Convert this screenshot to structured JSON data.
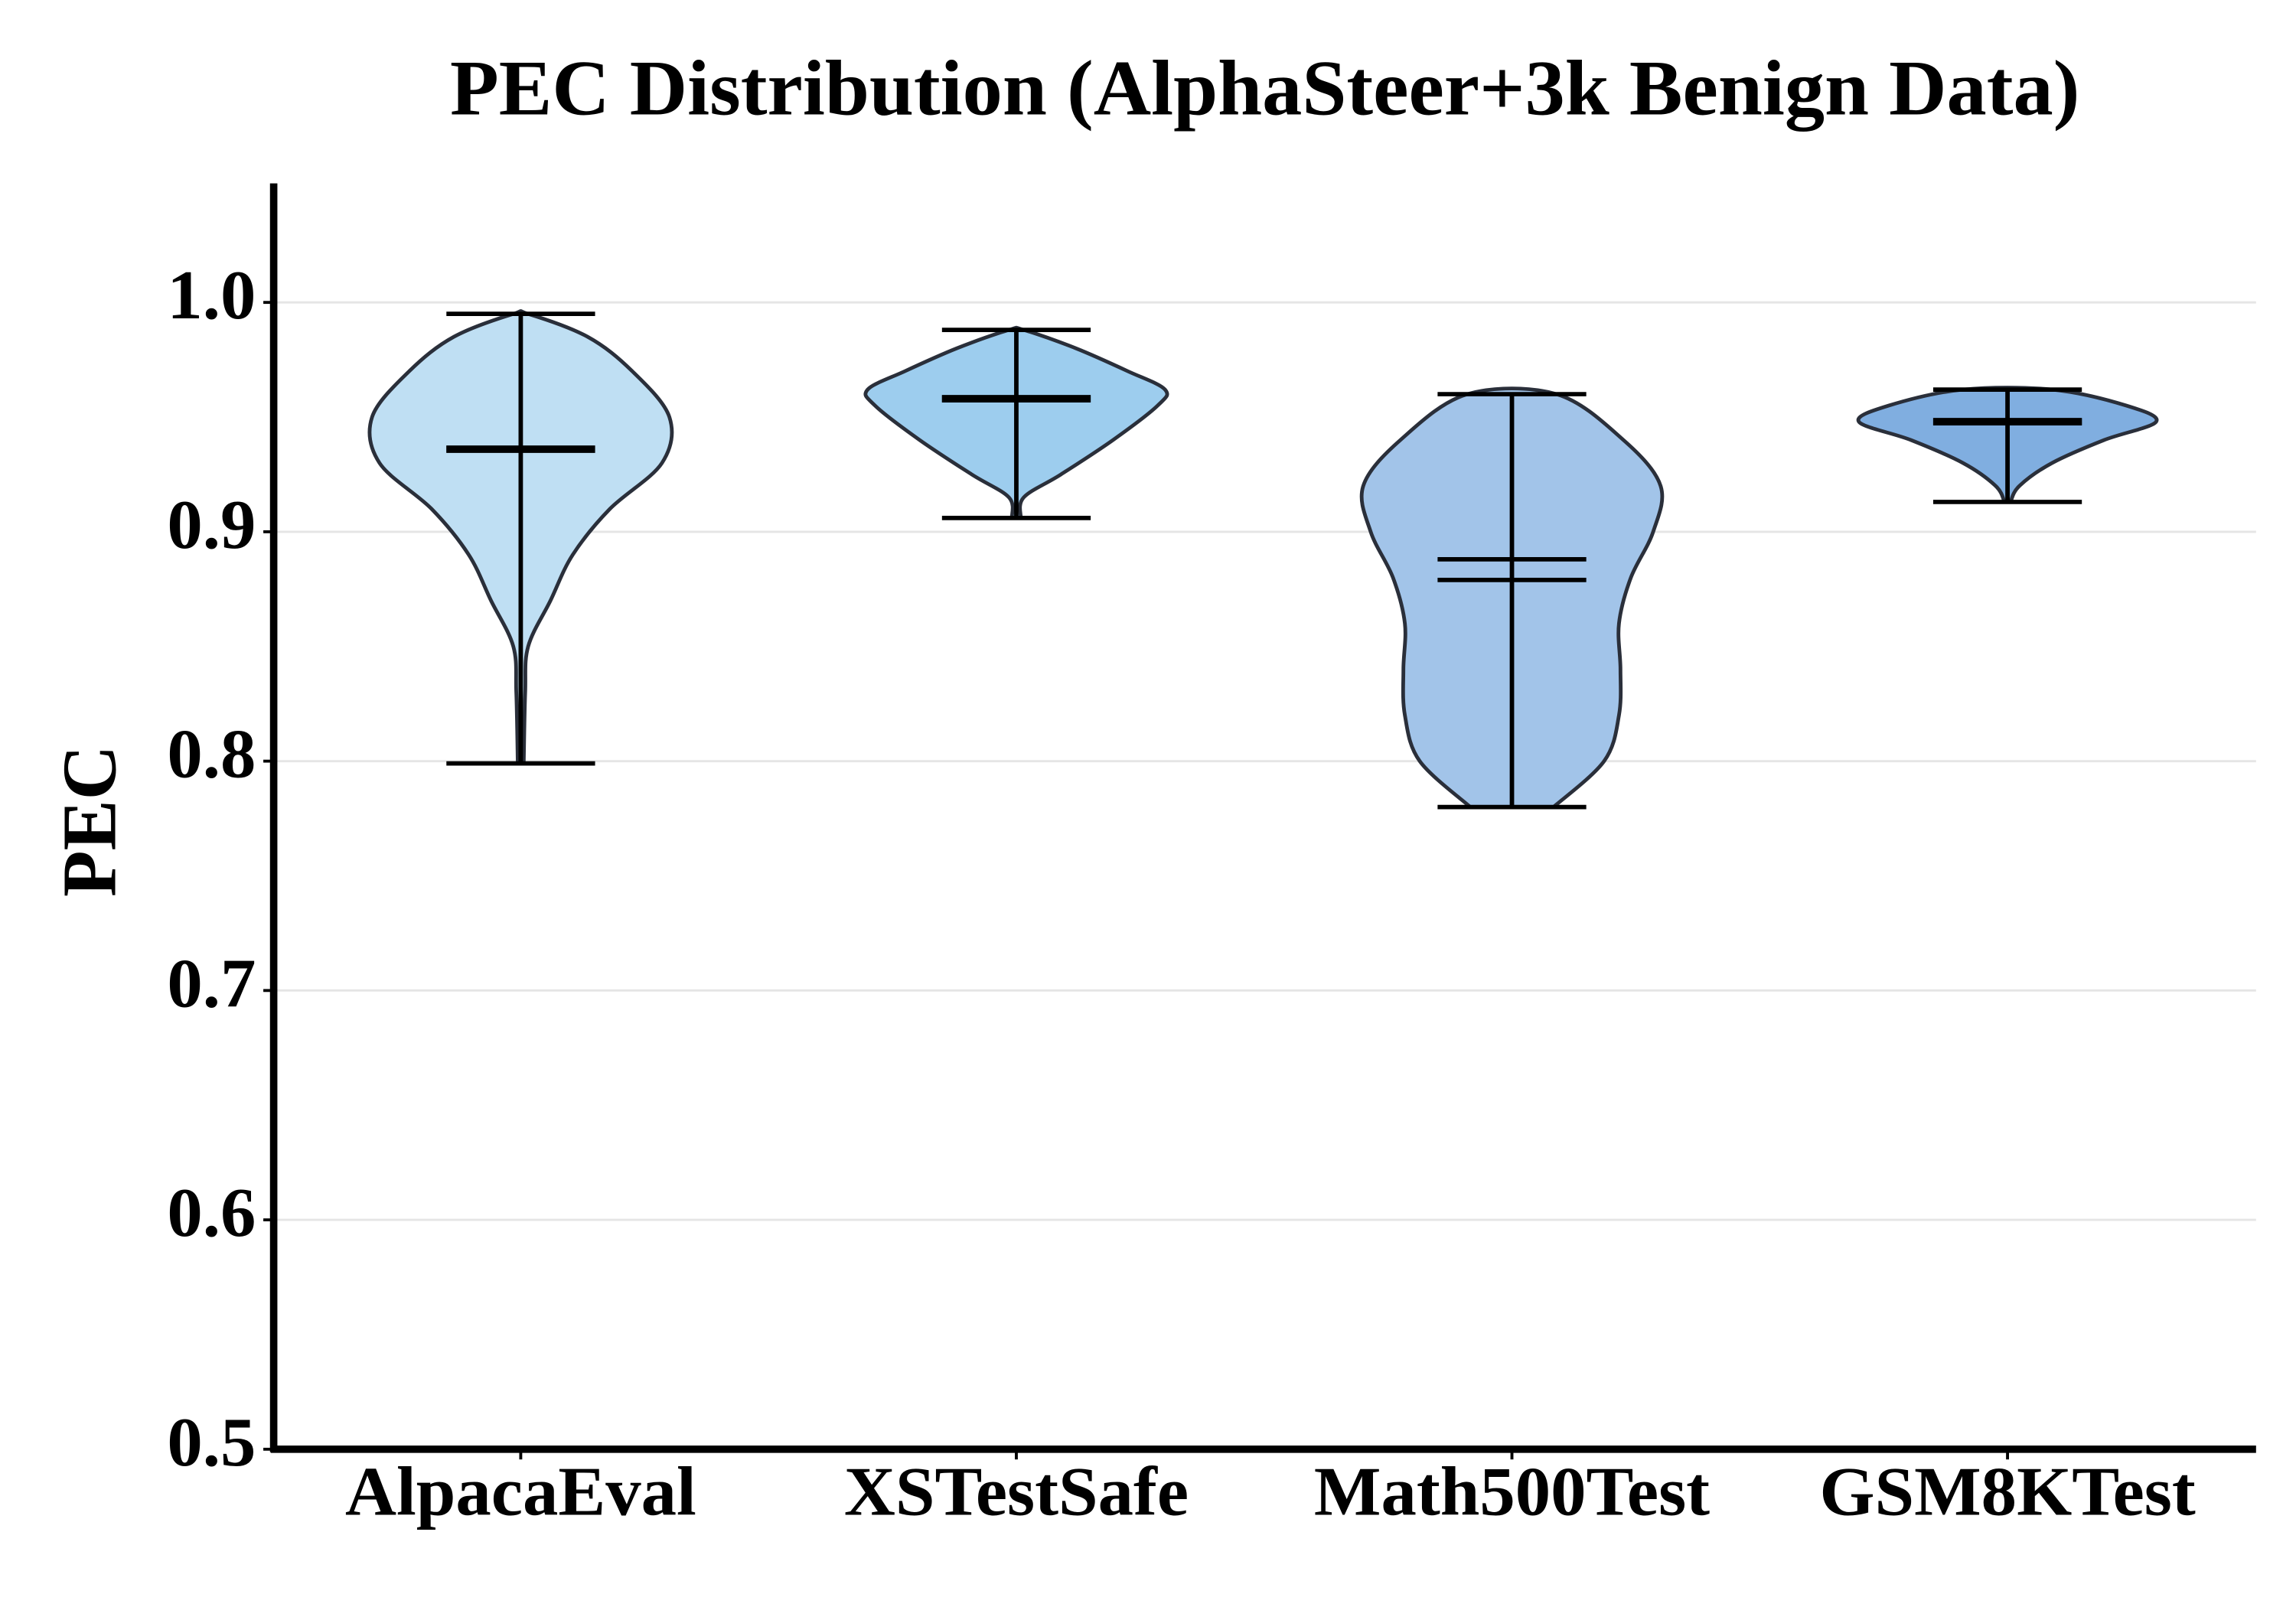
{
  "chart_data": {
    "type": "violin",
    "title": "PEC Distribution (AlphaSteer+3k Benign Data)",
    "y_label": "PEC",
    "categories": [
      "AlpacaEval",
      "XSTestSafe",
      "Math500Test",
      "GSM8KTest"
    ],
    "ylim": [
      0.5,
      1.05
    ],
    "yticks": [
      0.5,
      0.6,
      0.7,
      0.8,
      0.9,
      {
        "value": 1,
        "label": "1.0"
      }
    ],
    "grid": true,
    "series": [
      {
        "color": "#bfdff3",
        "min": 0.799,
        "max": 0.995,
        "mean": 0.936,
        "median": 0.936,
        "kde": {
          "y": [
            0.799,
            0.83,
            0.85,
            0.87,
            0.89,
            0.91,
            0.93,
            0.95,
            0.97,
            0.985,
            0.995
          ],
          "width": [
            0.02,
            0.03,
            0.05,
            0.2,
            0.35,
            0.6,
            0.95,
            1.0,
            0.75,
            0.45,
            0.05
          ]
        }
      },
      {
        "color": "#9dcdee",
        "min": 0.906,
        "max": 0.988,
        "mean": 0.958,
        "median": 0.958,
        "kde": {
          "y": [
            0.906,
            0.915,
            0.925,
            0.94,
            0.955,
            0.962,
            0.97,
            0.98,
            0.988
          ],
          "width": [
            0.03,
            0.05,
            0.3,
            0.65,
            0.95,
            1.0,
            0.75,
            0.4,
            0.05
          ]
        }
      },
      {
        "color": "#a2c4e9",
        "min": 0.78,
        "max": 0.96,
        "mean": 0.879,
        "median": 0.888,
        "kde": {
          "y": [
            0.78,
            0.8,
            0.82,
            0.84,
            0.86,
            0.88,
            0.9,
            0.92,
            0.94,
            0.96
          ],
          "width": [
            0.28,
            0.62,
            0.72,
            0.73,
            0.72,
            0.8,
            0.95,
            1.0,
            0.75,
            0.3
          ]
        }
      },
      {
        "color": "#80aee0",
        "min": 0.913,
        "max": 0.962,
        "mean": 0.948,
        "median": 0.948,
        "kde": {
          "y": [
            0.913,
            0.92,
            0.93,
            0.94,
            0.948,
            0.955,
            0.962
          ],
          "width": [
            0.02,
            0.08,
            0.3,
            0.65,
            1.0,
            0.8,
            0.3
          ]
        }
      }
    ]
  }
}
